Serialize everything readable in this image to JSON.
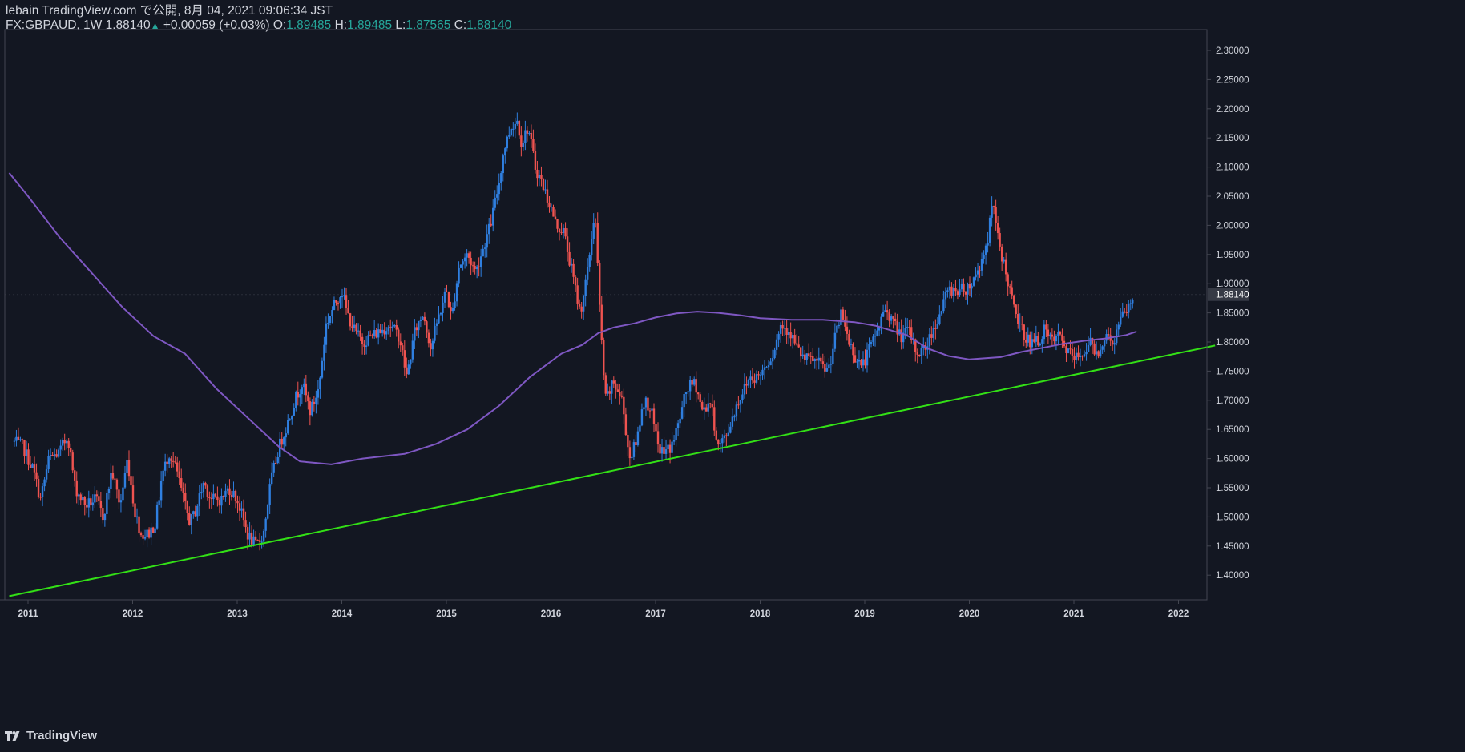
{
  "header": {
    "line1": "lebain TradingView.com で公開, 8月 04, 2021 09:06:34 JST",
    "symbol": "FX:GBPAUD, 1W 1.88140",
    "change_arrow": "▲",
    "change": "+0.00059 (+0.03%)",
    "open_label": "O:",
    "open": "1.89485",
    "high_label": "H:",
    "high": "1.89485",
    "low_label": "L:",
    "low": "1.87565",
    "close_label": "C:",
    "close": "1.88140"
  },
  "brand": {
    "name": "TradingView",
    "icon": "tradingview-logo-icon"
  },
  "colors": {
    "background": "#131722",
    "up": "#2f7fe0",
    "down": "#ef5350",
    "ma": "#7e57c2",
    "trendline": "#33e016",
    "text": "#d1d4dc",
    "value": "#26a69a",
    "axis_line": "#434651",
    "last_price_bg": "#363a45"
  },
  "chart_data": {
    "type": "candlestick",
    "symbol": "GBPAUD",
    "interval": "1W",
    "ylim": [
      1.36,
      2.32
    ],
    "xlim": [
      2010.82,
      2022.35
    ],
    "y_ticks": [
      "2.30000",
      "2.25000",
      "2.20000",
      "2.15000",
      "2.10000",
      "2.05000",
      "2.00000",
      "1.95000",
      "1.90000",
      "1.85000",
      "1.80000",
      "1.75000",
      "1.70000",
      "1.65000",
      "1.60000",
      "1.55000",
      "1.50000",
      "1.45000",
      "1.40000"
    ],
    "x_ticks": [
      "2011",
      "2012",
      "2013",
      "2014",
      "2015",
      "2016",
      "2017",
      "2018",
      "2019",
      "2020",
      "2021",
      "2022"
    ],
    "last_price": "1.88140",
    "close_path": [
      [
        2010.85,
        1.63
      ],
      [
        2010.95,
        1.62
      ],
      [
        2011.05,
        1.58
      ],
      [
        2011.12,
        1.53
      ],
      [
        2011.2,
        1.6
      ],
      [
        2011.3,
        1.61
      ],
      [
        2011.38,
        1.64
      ],
      [
        2011.45,
        1.55
      ],
      [
        2011.55,
        1.52
      ],
      [
        2011.65,
        1.53
      ],
      [
        2011.72,
        1.5
      ],
      [
        2011.8,
        1.58
      ],
      [
        2011.88,
        1.52
      ],
      [
        2011.95,
        1.6
      ],
      [
        2012.02,
        1.51
      ],
      [
        2012.08,
        1.47
      ],
      [
        2012.15,
        1.47
      ],
      [
        2012.22,
        1.49
      ],
      [
        2012.28,
        1.57
      ],
      [
        2012.35,
        1.61
      ],
      [
        2012.42,
        1.58
      ],
      [
        2012.5,
        1.52
      ],
      [
        2012.55,
        1.49
      ],
      [
        2012.6,
        1.51
      ],
      [
        2012.68,
        1.56
      ],
      [
        2012.75,
        1.53
      ],
      [
        2012.85,
        1.53
      ],
      [
        2012.92,
        1.55
      ],
      [
        2013.0,
        1.53
      ],
      [
        2013.1,
        1.47
      ],
      [
        2013.18,
        1.45
      ],
      [
        2013.25,
        1.47
      ],
      [
        2013.32,
        1.56
      ],
      [
        2013.4,
        1.62
      ],
      [
        2013.48,
        1.66
      ],
      [
        2013.55,
        1.7
      ],
      [
        2013.62,
        1.73
      ],
      [
        2013.7,
        1.68
      ],
      [
        2013.78,
        1.72
      ],
      [
        2013.85,
        1.83
      ],
      [
        2013.92,
        1.86
      ],
      [
        2014.0,
        1.89
      ],
      [
        2014.05,
        1.85
      ],
      [
        2014.12,
        1.82
      ],
      [
        2014.2,
        1.8
      ],
      [
        2014.28,
        1.81
      ],
      [
        2014.38,
        1.82
      ],
      [
        2014.45,
        1.83
      ],
      [
        2014.55,
        1.81
      ],
      [
        2014.62,
        1.74
      ],
      [
        2014.7,
        1.82
      ],
      [
        2014.78,
        1.85
      ],
      [
        2014.85,
        1.79
      ],
      [
        2014.92,
        1.84
      ],
      [
        2015.0,
        1.89
      ],
      [
        2015.05,
        1.84
      ],
      [
        2015.12,
        1.93
      ],
      [
        2015.2,
        1.95
      ],
      [
        2015.28,
        1.92
      ],
      [
        2015.35,
        1.96
      ],
      [
        2015.42,
        2.0
      ],
      [
        2015.5,
        2.07
      ],
      [
        2015.55,
        2.13
      ],
      [
        2015.62,
        2.17
      ],
      [
        2015.68,
        2.18
      ],
      [
        2015.72,
        2.14
      ],
      [
        2015.78,
        2.17
      ],
      [
        2015.85,
        2.1
      ],
      [
        2015.92,
        2.07
      ],
      [
        2016.0,
        2.03
      ],
      [
        2016.05,
        2.0
      ],
      [
        2016.12,
        1.99
      ],
      [
        2016.2,
        1.92
      ],
      [
        2016.28,
        1.85
      ],
      [
        2016.35,
        1.92
      ],
      [
        2016.42,
        2.03
      ],
      [
        2016.47,
        1.84
      ],
      [
        2016.52,
        1.7
      ],
      [
        2016.6,
        1.73
      ],
      [
        2016.68,
        1.7
      ],
      [
        2016.75,
        1.6
      ],
      [
        2016.82,
        1.63
      ],
      [
        2016.88,
        1.7
      ],
      [
        2016.95,
        1.69
      ],
      [
        2017.02,
        1.62
      ],
      [
        2017.08,
        1.61
      ],
      [
        2017.15,
        1.62
      ],
      [
        2017.22,
        1.66
      ],
      [
        2017.3,
        1.72
      ],
      [
        2017.38,
        1.73
      ],
      [
        2017.45,
        1.68
      ],
      [
        2017.52,
        1.7
      ],
      [
        2017.6,
        1.62
      ],
      [
        2017.68,
        1.64
      ],
      [
        2017.75,
        1.68
      ],
      [
        2017.82,
        1.71
      ],
      [
        2017.9,
        1.74
      ],
      [
        2017.98,
        1.74
      ],
      [
        2018.05,
        1.76
      ],
      [
        2018.12,
        1.78
      ],
      [
        2018.2,
        1.83
      ],
      [
        2018.28,
        1.82
      ],
      [
        2018.35,
        1.79
      ],
      [
        2018.42,
        1.77
      ],
      [
        2018.5,
        1.77
      ],
      [
        2018.58,
        1.76
      ],
      [
        2018.65,
        1.75
      ],
      [
        2018.72,
        1.81
      ],
      [
        2018.78,
        1.85
      ],
      [
        2018.85,
        1.8
      ],
      [
        2018.92,
        1.77
      ],
      [
        2018.98,
        1.76
      ],
      [
        2019.05,
        1.79
      ],
      [
        2019.12,
        1.82
      ],
      [
        2019.2,
        1.86
      ],
      [
        2019.28,
        1.83
      ],
      [
        2019.35,
        1.81
      ],
      [
        2019.42,
        1.82
      ],
      [
        2019.5,
        1.78
      ],
      [
        2019.58,
        1.79
      ],
      [
        2019.65,
        1.82
      ],
      [
        2019.72,
        1.85
      ],
      [
        2019.8,
        1.89
      ],
      [
        2019.88,
        1.89
      ],
      [
        2019.95,
        1.89
      ],
      [
        2020.02,
        1.9
      ],
      [
        2020.1,
        1.93
      ],
      [
        2020.18,
        1.98
      ],
      [
        2020.22,
        2.04
      ],
      [
        2020.28,
        1.97
      ],
      [
        2020.35,
        1.92
      ],
      [
        2020.42,
        1.86
      ],
      [
        2020.5,
        1.82
      ],
      [
        2020.58,
        1.8
      ],
      [
        2020.65,
        1.8
      ],
      [
        2020.72,
        1.82
      ],
      [
        2020.78,
        1.8
      ],
      [
        2020.85,
        1.81
      ],
      [
        2020.92,
        1.79
      ],
      [
        2021.0,
        1.77
      ],
      [
        2021.08,
        1.78
      ],
      [
        2021.15,
        1.8
      ],
      [
        2021.22,
        1.78
      ],
      [
        2021.3,
        1.81
      ],
      [
        2021.38,
        1.8
      ],
      [
        2021.45,
        1.84
      ],
      [
        2021.52,
        1.86
      ],
      [
        2021.58,
        1.88
      ]
    ],
    "moving_average": {
      "name": "MA",
      "points": [
        [
          2010.82,
          2.09
        ],
        [
          2011.0,
          2.05
        ],
        [
          2011.3,
          1.98
        ],
        [
          2011.6,
          1.92
        ],
        [
          2011.9,
          1.86
        ],
        [
          2012.2,
          1.81
        ],
        [
          2012.5,
          1.78
        ],
        [
          2012.8,
          1.72
        ],
        [
          2013.1,
          1.67
        ],
        [
          2013.4,
          1.62
        ],
        [
          2013.6,
          1.595
        ],
        [
          2013.9,
          1.59
        ],
        [
          2014.2,
          1.6
        ],
        [
          2014.6,
          1.608
        ],
        [
          2014.9,
          1.625
        ],
        [
          2015.2,
          1.65
        ],
        [
          2015.5,
          1.69
        ],
        [
          2015.8,
          1.74
        ],
        [
          2016.1,
          1.78
        ],
        [
          2016.3,
          1.795
        ],
        [
          2016.45,
          1.815
        ],
        [
          2016.6,
          1.825
        ],
        [
          2016.8,
          1.832
        ],
        [
          2017.0,
          1.842
        ],
        [
          2017.2,
          1.849
        ],
        [
          2017.4,
          1.852
        ],
        [
          2017.6,
          1.85
        ],
        [
          2017.8,
          1.846
        ],
        [
          2018.0,
          1.841
        ],
        [
          2018.3,
          1.838
        ],
        [
          2018.6,
          1.838
        ],
        [
          2018.9,
          1.834
        ],
        [
          2019.1,
          1.828
        ],
        [
          2019.4,
          1.812
        ],
        [
          2019.6,
          1.789
        ],
        [
          2019.8,
          1.776
        ],
        [
          2020.0,
          1.77
        ],
        [
          2020.3,
          1.774
        ],
        [
          2020.5,
          1.783
        ],
        [
          2020.7,
          1.79
        ],
        [
          2020.9,
          1.797
        ],
        [
          2021.1,
          1.802
        ],
        [
          2021.3,
          1.806
        ],
        [
          2021.5,
          1.812
        ],
        [
          2021.6,
          1.818
        ]
      ]
    },
    "trendline": {
      "from": [
        2010.82,
        1.364
      ],
      "to": [
        2022.35,
        1.794
      ]
    }
  }
}
